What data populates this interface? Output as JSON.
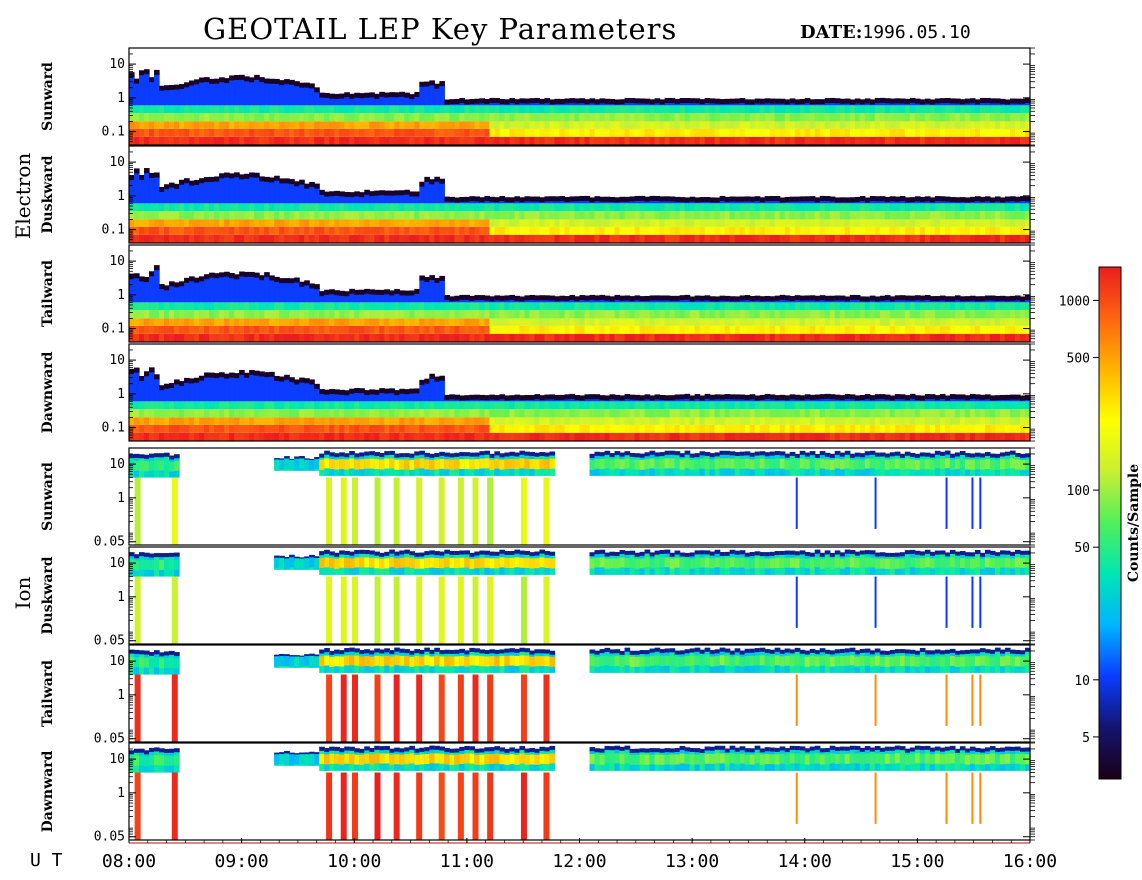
{
  "header": {
    "title": "GEOTAIL LEP Key Parameters",
    "date_label": "DATE:",
    "date_value": "1996.05.10"
  },
  "chart_data": {
    "type": "heatmap",
    "title": "GEOTAIL LEP Key Parameters",
    "date": "1996.05.10",
    "x_axis": {
      "label": "U T",
      "ticks": [
        "08:00",
        "09:00",
        "10:00",
        "11:00",
        "12:00",
        "13:00",
        "14:00",
        "15:00",
        "16:00"
      ],
      "range": [
        "08:00",
        "16:00"
      ]
    },
    "colorbar": {
      "label": "Counts/Sample",
      "scale": "log",
      "range": [
        3,
        1500
      ],
      "ticks": [
        5,
        10,
        50,
        100,
        500,
        1000
      ],
      "colormap": [
        "#1a0018",
        "#14146e",
        "#0b3cff",
        "#00b4ff",
        "#00e6b4",
        "#4ff05a",
        "#c8f032",
        "#ffff00",
        "#ffb400",
        "#ff6410",
        "#eb1e1e"
      ]
    },
    "groups": [
      {
        "species": "Electron",
        "y_ticks": [
          "10",
          "1",
          "0.1"
        ],
        "y_range": [
          0.04,
          30
        ],
        "y_scale": "log",
        "panels": [
          "Sunward",
          "Duskward",
          "Tailward",
          "Dawnward"
        ]
      },
      {
        "species": "Ion",
        "y_ticks": [
          "10",
          "1",
          "0.05"
        ],
        "y_range": [
          0.04,
          30
        ],
        "y_scale": "log",
        "panels": [
          "Sunward",
          "Duskward",
          "Tailward",
          "Dawnward"
        ]
      }
    ],
    "colors": {
      "hot": "#eb1e1e",
      "warm": "#ffb400",
      "mid": "#4ff05a",
      "cool": "#00b4ff",
      "cold": "#0b3cff",
      "edge": "#14146e",
      "background": "#ffffff"
    }
  }
}
